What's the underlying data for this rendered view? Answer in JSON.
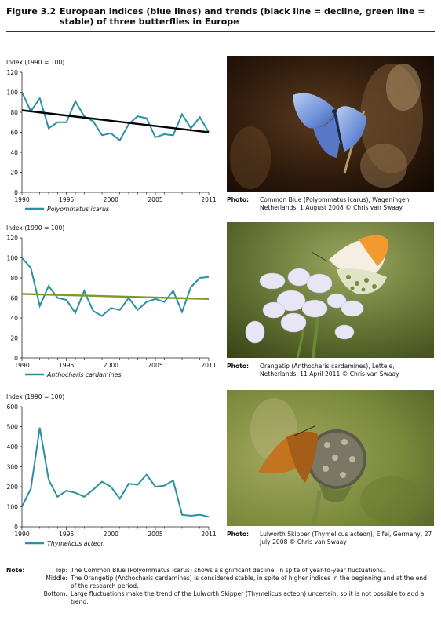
{
  "figure": {
    "label": "Figure 3.2",
    "title": "European indices (blue lines) and trends (black line = decline, green line = stable) of three butterflies in Europe"
  },
  "colors": {
    "index_line": "#2a8fa6",
    "decline_trend": "#000000",
    "stable_trend": "#7a9a2a"
  },
  "chart_data": [
    {
      "type": "line",
      "ylabel": "Index (1990 = 100)",
      "ylim": [
        0,
        120
      ],
      "yticks": [
        0,
        20,
        40,
        60,
        80,
        100,
        120
      ],
      "xticks": [
        1990,
        1995,
        2000,
        2005,
        2011
      ],
      "grid": false,
      "legend_position": "bottom-left",
      "series": [
        {
          "name": "Polyommatus icarus",
          "kind": "index",
          "x": [
            1990,
            1991,
            1992,
            1993,
            1994,
            1995,
            1996,
            1997,
            1998,
            1999,
            2000,
            2001,
            2002,
            2003,
            2004,
            2005,
            2006,
            2007,
            2008,
            2009,
            2010,
            2011
          ],
          "y": [
            100,
            81,
            94,
            64,
            70,
            70,
            91,
            76,
            71,
            57,
            59,
            52,
            68,
            76,
            74,
            55,
            58,
            57,
            78,
            64,
            75,
            60
          ]
        },
        {
          "kind": "trend",
          "x": [
            1990,
            2011
          ],
          "y": [
            82,
            60
          ]
        }
      ]
    },
    {
      "type": "line",
      "ylabel": "Index (1990 = 100)",
      "ylim": [
        0,
        120
      ],
      "yticks": [
        0,
        20,
        40,
        60,
        80,
        100,
        120
      ],
      "xticks": [
        1990,
        1995,
        2000,
        2005,
        2011
      ],
      "grid": false,
      "legend_position": "bottom-left",
      "series": [
        {
          "name": "Anthocharis cardamines",
          "kind": "index",
          "x": [
            1990,
            1991,
            1992,
            1993,
            1994,
            1995,
            1996,
            1997,
            1998,
            1999,
            2000,
            2001,
            2002,
            2003,
            2004,
            2005,
            2006,
            2007,
            2008,
            2009,
            2010,
            2011
          ],
          "y": [
            100,
            90,
            52,
            72,
            60,
            58,
            45,
            67,
            47,
            42,
            50,
            48,
            60,
            48,
            56,
            59,
            56,
            67,
            46,
            71,
            80,
            81
          ]
        },
        {
          "kind": "trend",
          "x": [
            1990,
            2011
          ],
          "y": [
            64,
            59
          ]
        }
      ]
    },
    {
      "type": "line",
      "ylabel": "Index (1990 = 100)",
      "ylim": [
        0,
        600
      ],
      "yticks": [
        0,
        100,
        200,
        300,
        400,
        500,
        600
      ],
      "xticks": [
        1990,
        1995,
        2000,
        2005,
        2011
      ],
      "grid": false,
      "legend_position": "bottom-left",
      "series": [
        {
          "name": "Thymelicus acteon",
          "kind": "index",
          "x": [
            1990,
            1991,
            1992,
            1993,
            1994,
            1995,
            1996,
            1997,
            1998,
            1999,
            2000,
            2001,
            2002,
            2003,
            2004,
            2005,
            2006,
            2007,
            2008,
            2009,
            2010,
            2011
          ],
          "y": [
            100,
            190,
            495,
            235,
            150,
            180,
            170,
            150,
            185,
            225,
            200,
            140,
            215,
            210,
            260,
            200,
            205,
            230,
            60,
            55,
            60,
            50
          ]
        }
      ]
    }
  ],
  "photos": [
    {
      "key": "Photo:",
      "text": "Common Blue (Polyommatus icarus), Wageningen, Netherlands, 1 August 2008 © Chris van Swaay"
    },
    {
      "key": "Photo:",
      "text": "Orangetip (Anthocharis cardamines), Lettele, Netherlands, 11 April 2011 © Chris van Swaay"
    },
    {
      "key": "Photo:",
      "text": "Lulworth Skipper (Thymelicus acteon), Eifel, Germany, 27 July 2008 © Chris van Swaay"
    }
  ],
  "notes": {
    "key": "Note:",
    "items": [
      {
        "tag": "Top:",
        "text": "The Common Blue (Polyommatus icarus) shows a significant decline, in spite of year-to-year fluctuations."
      },
      {
        "tag": "Middle:",
        "text": "The Orangetip (Anthocharis cardamines) is considered stable, in spite of higher indices in the beginning and at the end of the research period."
      },
      {
        "tag": "Bottom:",
        "text": "Large fluctuations make the trend of the Lulworth Skipper (Thymelicus acteon) uncertain, so it is not possible to add a trend."
      }
    ]
  }
}
